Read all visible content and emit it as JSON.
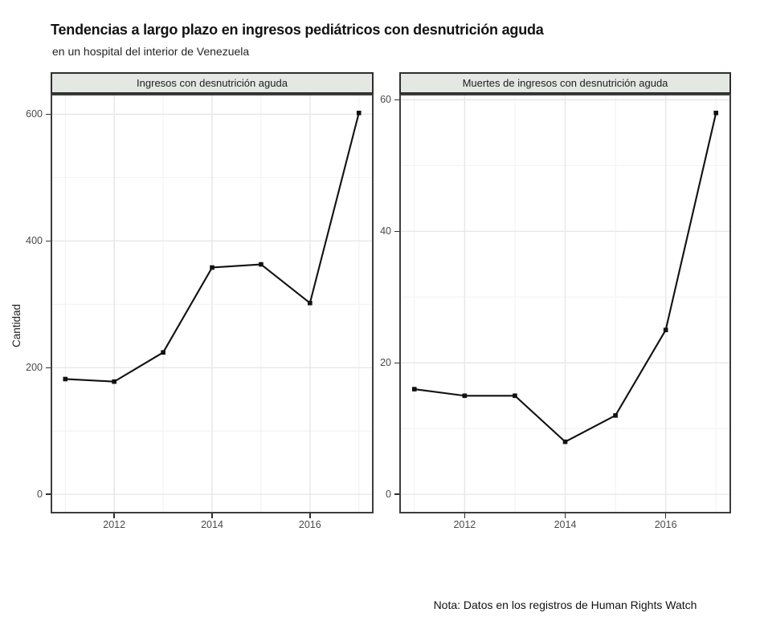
{
  "chart_data": {
    "type": "line",
    "title": "Tendencias a largo plazo en ingresos pediátricos con desnutrición aguda",
    "subtitle": "en un hospital del interior de Venezuela",
    "ylabel": "Cantidad",
    "note": "Nota: Datos en los registros de Human Rights Watch",
    "x": [
      2011,
      2012,
      2013,
      2014,
      2015,
      2016,
      2017
    ],
    "xlim": [
      2011,
      2017
    ],
    "x_major_ticks": [
      2012,
      2014,
      2016
    ],
    "x_minor_ticks": [
      2011,
      2013,
      2015,
      2017
    ],
    "legend": "none",
    "grid": true,
    "panels": [
      {
        "label": "Ingresos con desnutrición aguda",
        "series_name": "Ingresos",
        "values": [
          182,
          178,
          224,
          358,
          363,
          302,
          602
        ],
        "y_ticks": [
          0,
          200,
          400,
          600
        ],
        "y_minor_ticks": [
          100,
          300,
          500
        ],
        "ylim": [
          0,
          602
        ]
      },
      {
        "label": "Muertes de ingresos con desnutrición aguda",
        "series_name": "Muertes",
        "values": [
          16,
          15,
          15,
          8,
          12,
          25,
          58
        ],
        "y_ticks": [
          0,
          20,
          40,
          60
        ],
        "y_minor_ticks": [
          10,
          30,
          50
        ],
        "ylim": [
          0,
          58
        ]
      }
    ],
    "colors": {
      "line": "#111111",
      "marker": "#111111",
      "strip_bg": "#e4e8e3",
      "strip_border": "#2e2e2e",
      "panel_border": "#3e3e3e",
      "grid_major": "#e7e7e7",
      "grid_minor": "#f3f3f3",
      "tick_mark": "#2f2f2f",
      "tick_text": "#4a4a4a"
    }
  }
}
